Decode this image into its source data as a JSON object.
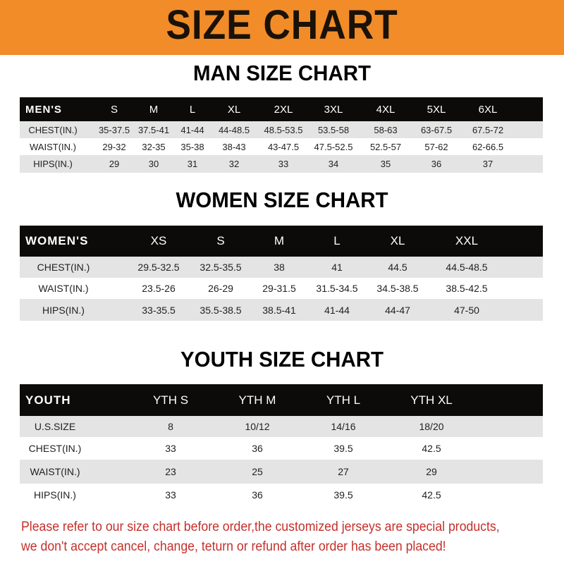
{
  "banner": {
    "title": "SIZE CHART",
    "color": "#f28c28"
  },
  "men": {
    "title": "MAN SIZE CHART",
    "header": [
      "MEN'S",
      "S",
      "M",
      "L",
      "XL",
      "2XL",
      "3XL",
      "4XL",
      "5XL",
      "6XL"
    ],
    "rows": [
      [
        "CHEST(IN.)",
        "35-37.5",
        "37.5-41",
        "41-44",
        "44-48.5",
        "48.5-53.5",
        "53.5-58",
        "58-63",
        "63-67.5",
        "67.5-72"
      ],
      [
        "WAIST(IN.)",
        "29-32",
        "32-35",
        "35-38",
        "38-43",
        "43-47.5",
        "47.5-52.5",
        "52.5-57",
        "57-62",
        "62-66.5"
      ],
      [
        "HIPS(IN.)",
        "29",
        "30",
        "31",
        "32",
        "33",
        "34",
        "35",
        "36",
        "37"
      ]
    ]
  },
  "women": {
    "title": "WOMEN SIZE CHART",
    "header": [
      "WOMEN'S",
      "XS",
      "S",
      "M",
      "L",
      "XL",
      "XXL"
    ],
    "rows": [
      [
        "CHEST(IN.)",
        "29.5-32.5",
        "32.5-35.5",
        "38",
        "41",
        "44.5",
        "44.5-48.5"
      ],
      [
        "WAIST(IN.)",
        "23.5-26",
        "26-29",
        "29-31.5",
        "31.5-34.5",
        "34.5-38.5",
        "38.5-42.5"
      ],
      [
        "HIPS(IN.)",
        "33-35.5",
        "35.5-38.5",
        "38.5-41",
        "41-44",
        "44-47",
        "47-50"
      ]
    ]
  },
  "youth": {
    "title": "YOUTH SIZE CHART",
    "header": [
      "YOUTH",
      "YTH S",
      "YTH M",
      "YTH L",
      "YTH XL"
    ],
    "rows": [
      [
        "U.S.SIZE",
        "8",
        "10/12",
        "14/16",
        "18/20"
      ],
      [
        "CHEST(IN.)",
        "33",
        "36",
        "39.5",
        "42.5"
      ],
      [
        "WAIST(IN.)",
        "23",
        "25",
        "27",
        "29"
      ],
      [
        "HIPS(IN.)",
        "33",
        "36",
        "39.5",
        "42.5"
      ]
    ]
  },
  "disclaimer": {
    "line1": "Please refer to our size chart before order,the customized jerseys are special products,",
    "line2": "we don't accept cancel, change, teturn or refund after order has been placed!",
    "color": "#c4302b"
  }
}
